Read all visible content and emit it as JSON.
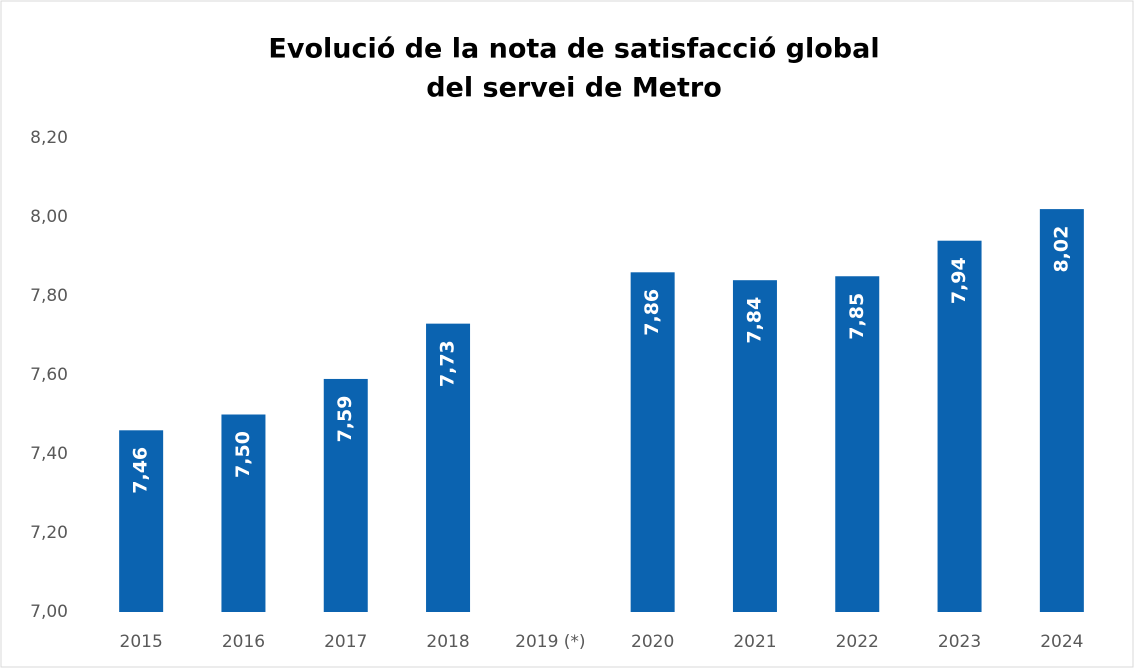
{
  "chart_data": {
    "type": "bar",
    "title": [
      "Evolució de la nota de satisfacció global",
      "del servei de Metro"
    ],
    "categories": [
      "2015",
      "2016",
      "2017",
      "2018",
      "2019 (*)",
      "2020",
      "2021",
      "2022",
      "2023",
      "2024"
    ],
    "values": [
      7.46,
      7.5,
      7.59,
      7.73,
      null,
      7.86,
      7.84,
      7.85,
      7.94,
      8.02
    ],
    "value_labels": [
      "7,46",
      "7,50",
      "7,59",
      "7,73",
      null,
      "7,86",
      "7,84",
      "7,85",
      "7,94",
      "8,02"
    ],
    "color": "#0b63b0",
    "ylim": [
      7.0,
      8.2
    ],
    "yticks": [
      {
        "value": 7.0,
        "label": "7,00"
      },
      {
        "value": 7.2,
        "label": "7,20"
      },
      {
        "value": 7.4,
        "label": "7,40"
      },
      {
        "value": 7.6,
        "label": "7,60"
      },
      {
        "value": 7.8,
        "label": "7,80"
      },
      {
        "value": 8.0,
        "label": "8,00"
      },
      {
        "value": 8.2,
        "label": "8,20"
      }
    ],
    "grid": false
  }
}
